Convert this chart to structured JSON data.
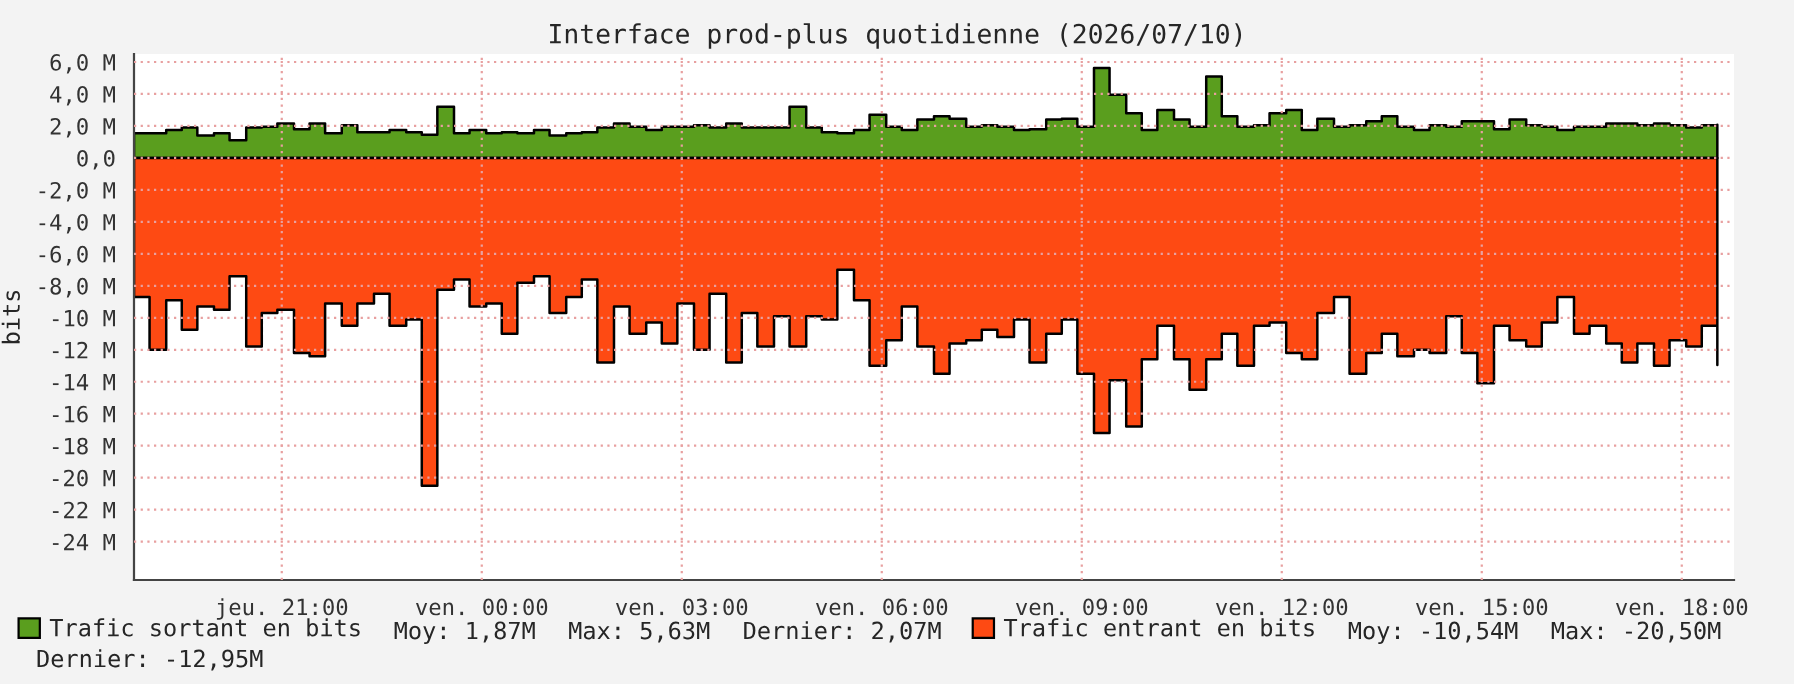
{
  "chart_data": {
    "type": "area",
    "title": "Interface prod-plus quotidienne (2026/07/10)",
    "ylabel": "bits",
    "x": [
      "2026-07-09T18:47",
      "2026-07-09T19:01",
      "2026-07-09T19:16",
      "2026-07-09T19:30",
      "2026-07-09T19:44",
      "2026-07-09T19:59",
      "2026-07-09T20:13",
      "2026-07-09T20:28",
      "2026-07-09T20:42",
      "2026-07-09T20:56",
      "2026-07-09T21:11",
      "2026-07-09T21:25",
      "2026-07-09T21:39",
      "2026-07-09T21:54",
      "2026-07-09T22:08",
      "2026-07-09T22:23",
      "2026-07-09T22:37",
      "2026-07-09T22:52",
      "2026-07-09T23:06",
      "2026-07-09T23:20",
      "2026-07-09T23:35",
      "2026-07-09T23:49",
      "2026-07-10T00:04",
      "2026-07-10T00:18",
      "2026-07-10T00:32",
      "2026-07-10T00:47",
      "2026-07-10T01:01",
      "2026-07-10T01:16",
      "2026-07-10T01:30",
      "2026-07-10T01:44",
      "2026-07-10T01:59",
      "2026-07-10T02:13",
      "2026-07-10T02:28",
      "2026-07-10T02:42",
      "2026-07-10T02:56",
      "2026-07-10T03:11",
      "2026-07-10T03:25",
      "2026-07-10T03:40",
      "2026-07-10T03:54",
      "2026-07-10T04:08",
      "2026-07-10T04:23",
      "2026-07-10T04:37",
      "2026-07-10T04:52",
      "2026-07-10T05:06",
      "2026-07-10T05:20",
      "2026-07-10T05:35",
      "2026-07-10T05:49",
      "2026-07-10T06:04",
      "2026-07-10T06:18",
      "2026-07-10T06:32",
      "2026-07-10T06:47",
      "2026-07-10T07:01",
      "2026-07-10T07:16",
      "2026-07-10T07:30",
      "2026-07-10T07:44",
      "2026-07-10T07:59",
      "2026-07-10T08:13",
      "2026-07-10T08:28",
      "2026-07-10T08:42",
      "2026-07-10T08:56",
      "2026-07-10T09:11",
      "2026-07-10T09:25",
      "2026-07-10T09:40",
      "2026-07-10T09:54",
      "2026-07-10T10:08",
      "2026-07-10T10:23",
      "2026-07-10T10:37",
      "2026-07-10T10:52",
      "2026-07-10T11:06",
      "2026-07-10T11:20",
      "2026-07-10T11:35",
      "2026-07-10T11:49",
      "2026-07-10T12:04",
      "2026-07-10T12:18",
      "2026-07-10T12:32",
      "2026-07-10T12:47",
      "2026-07-10T13:01",
      "2026-07-10T13:16",
      "2026-07-10T13:30",
      "2026-07-10T13:44",
      "2026-07-10T13:59",
      "2026-07-10T14:13",
      "2026-07-10T14:28",
      "2026-07-10T14:42",
      "2026-07-10T14:56",
      "2026-07-10T15:11",
      "2026-07-10T15:25",
      "2026-07-10T15:40",
      "2026-07-10T15:54",
      "2026-07-10T16:08",
      "2026-07-10T16:23",
      "2026-07-10T16:37",
      "2026-07-10T16:52",
      "2026-07-10T17:06",
      "2026-07-10T17:20",
      "2026-07-10T17:35",
      "2026-07-10T17:49",
      "2026-07-10T18:04",
      "2026-07-10T18:18",
      "2026-07-10T18:32"
    ],
    "series": [
      {
        "name": "Trafic sortant en bits",
        "color": "#5a9e1e",
        "values": [
          1550000,
          1550000,
          1750000,
          1900000,
          1400000,
          1550000,
          1100000,
          1900000,
          1950000,
          2150000,
          1800000,
          2150000,
          1550000,
          2050000,
          1600000,
          1600000,
          1750000,
          1600000,
          1450000,
          3200000,
          1550000,
          1750000,
          1550000,
          1600000,
          1550000,
          1750000,
          1400000,
          1550000,
          1600000,
          1900000,
          2150000,
          1950000,
          1750000,
          1950000,
          1950000,
          2050000,
          1900000,
          2150000,
          1900000,
          1900000,
          1900000,
          3200000,
          1900000,
          1600000,
          1550000,
          1750000,
          2700000,
          1950000,
          1750000,
          2400000,
          2600000,
          2450000,
          1950000,
          2050000,
          1950000,
          1750000,
          1800000,
          2400000,
          2450000,
          1950000,
          5630000,
          3950000,
          2800000,
          1750000,
          3000000,
          2400000,
          1950000,
          5100000,
          2600000,
          1950000,
          2050000,
          2800000,
          3000000,
          1750000,
          2450000,
          1950000,
          2050000,
          2300000,
          2600000,
          1950000,
          1750000,
          2050000,
          1950000,
          2300000,
          2300000,
          1800000,
          2400000,
          2050000,
          1950000,
          1750000,
          1950000,
          1950000,
          2150000,
          2150000,
          2050000,
          2150000,
          2050000,
          1900000,
          2050000,
          2070000
        ]
      },
      {
        "name": "Trafic entrant en bits",
        "color": "#fe4a13",
        "values": [
          -8700000,
          -12000000,
          -8900000,
          -10750000,
          -9300000,
          -9500000,
          -7400000,
          -11800000,
          -9700000,
          -9500000,
          -12200000,
          -12400000,
          -9100000,
          -10500000,
          -9100000,
          -8500000,
          -10500000,
          -10100000,
          -20500000,
          -8250000,
          -7600000,
          -9300000,
          -9100000,
          -11000000,
          -7800000,
          -7400000,
          -9700000,
          -8700000,
          -7600000,
          -12800000,
          -9300000,
          -11000000,
          -10300000,
          -11600000,
          -9100000,
          -12000000,
          -8500000,
          -12800000,
          -9700000,
          -11800000,
          -9900000,
          -11800000,
          -9900000,
          -10100000,
          -7000000,
          -8900000,
          -13000000,
          -11400000,
          -9300000,
          -11800000,
          -13500000,
          -11600000,
          -11400000,
          -10750000,
          -11200000,
          -10100000,
          -12800000,
          -11000000,
          -10100000,
          -13500000,
          -17200000,
          -13900000,
          -16800000,
          -12600000,
          -10500000,
          -12600000,
          -14500000,
          -12600000,
          -11000000,
          -13000000,
          -10500000,
          -10300000,
          -12200000,
          -12600000,
          -9700000,
          -8700000,
          -13500000,
          -12200000,
          -11000000,
          -12400000,
          -12000000,
          -12200000,
          -9900000,
          -12200000,
          -14100000,
          -10500000,
          -11400000,
          -11800000,
          -10300000,
          -8700000,
          -11000000,
          -10500000,
          -11600000,
          -12800000,
          -11600000,
          -13000000,
          -11400000,
          -11800000,
          -10500000,
          -12950000
        ]
      }
    ],
    "xlim": [
      "2026-07-09T18:47",
      "2026-07-10T18:47"
    ],
    "xticks": [
      {
        "value": "2026-07-09T21:00",
        "label": "jeu. 21:00"
      },
      {
        "value": "2026-07-10T00:00",
        "label": "ven. 00:00"
      },
      {
        "value": "2026-07-10T03:00",
        "label": "ven. 03:00"
      },
      {
        "value": "2026-07-10T06:00",
        "label": "ven. 06:00"
      },
      {
        "value": "2026-07-10T09:00",
        "label": "ven. 09:00"
      },
      {
        "value": "2026-07-10T12:00",
        "label": "ven. 12:00"
      },
      {
        "value": "2026-07-10T15:00",
        "label": "ven. 15:00"
      },
      {
        "value": "2026-07-10T18:00",
        "label": "ven. 18:00"
      }
    ],
    "ylim": [
      -26400000,
      6500000
    ],
    "yticks": [
      {
        "value": 6000000,
        "label": "6,0 M"
      },
      {
        "value": 4000000,
        "label": "4,0 M"
      },
      {
        "value": 2000000,
        "label": "2,0 M"
      },
      {
        "value": 0,
        "label": "0,0"
      },
      {
        "value": -2000000,
        "label": "-2,0 M"
      },
      {
        "value": -4000000,
        "label": "-4,0 M"
      },
      {
        "value": -6000000,
        "label": "-6,0 M"
      },
      {
        "value": -8000000,
        "label": "-8,0 M"
      },
      {
        "value": -10000000,
        "label": "-10 M"
      },
      {
        "value": -12000000,
        "label": "-12 M"
      },
      {
        "value": -14000000,
        "label": "-14 M"
      },
      {
        "value": -16000000,
        "label": "-16 M"
      },
      {
        "value": -18000000,
        "label": "-18 M"
      },
      {
        "value": -20000000,
        "label": "-20 M"
      },
      {
        "value": -22000000,
        "label": "-22 M"
      },
      {
        "value": -24000000,
        "label": "-24 M"
      }
    ],
    "grid": true,
    "legend": "bottom",
    "annotations": [
      "Moy: 1,87M",
      "Max: 5,63M",
      "Dernier: 2,07M",
      "Moy: -10,54M",
      "Max: -20,50M",
      "Dernier: -12,95M"
    ]
  }
}
